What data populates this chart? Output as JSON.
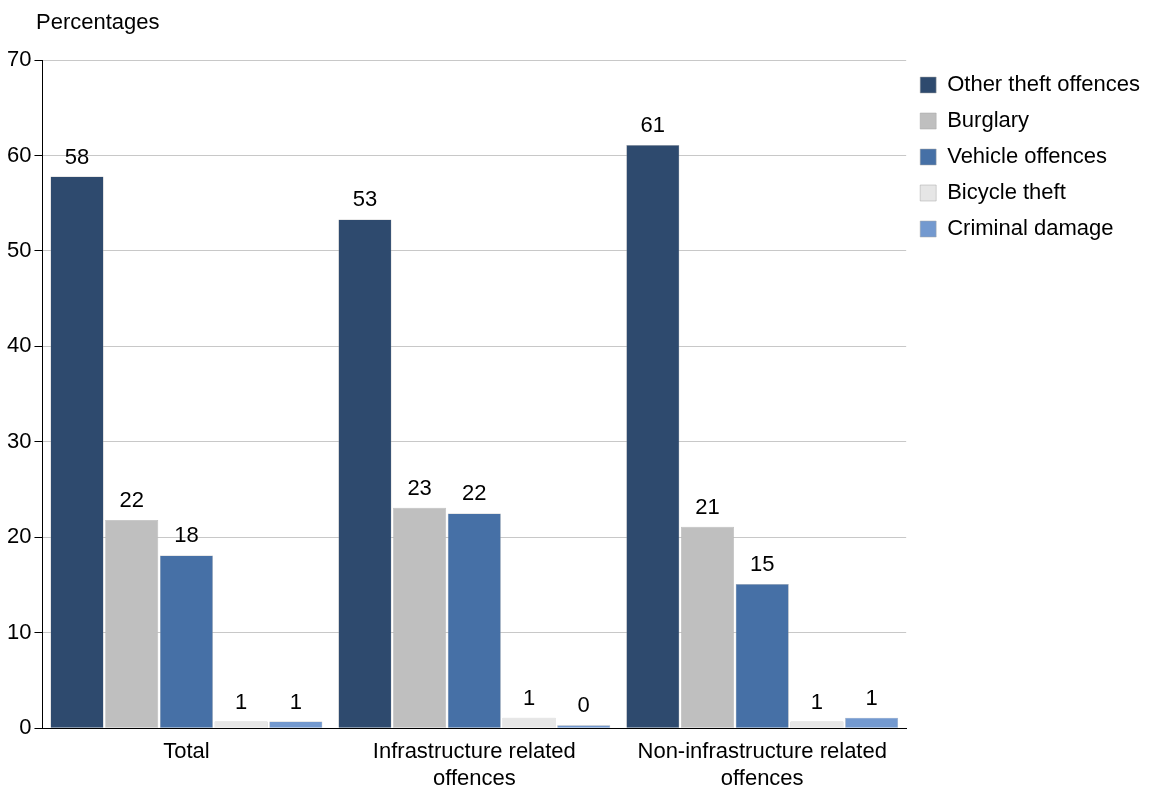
{
  "chart_data": {
    "type": "bar",
    "ylabel": "Percentages",
    "categories": [
      "Total",
      "Infrastructure related offences",
      "Non-infrastructure related offences"
    ],
    "series": [
      {
        "name": "Other theft offences",
        "color": "#2e4a6e",
        "values": [
          57.8,
          53.3,
          61.1
        ],
        "value_labels": [
          "58",
          "53",
          "61"
        ]
      },
      {
        "name": "Burglary",
        "color": "#bfbfbf",
        "values": [
          21.8,
          23.1,
          21.1
        ],
        "value_labels": [
          "22",
          "23",
          "21"
        ]
      },
      {
        "name": "Vehicle offences",
        "color": "#4670a6",
        "values": [
          18.1,
          22.5,
          15.1
        ],
        "value_labels": [
          "18",
          "22",
          "15"
        ]
      },
      {
        "name": "Bicycle theft",
        "color": "#e6e6e6",
        "values": [
          0.7,
          1.1,
          0.7
        ],
        "value_labels": [
          "1",
          "1",
          "1"
        ]
      },
      {
        "name": "Criminal damage",
        "color": "#7399cf",
        "values": [
          0.7,
          0.3,
          1.1
        ],
        "value_labels": [
          "1",
          "0",
          "1"
        ]
      }
    ],
    "ylim": [
      0,
      70
    ],
    "yticks": [
      0,
      10,
      20,
      30,
      40,
      50,
      60,
      70
    ],
    "grid": "y",
    "legend": "top right"
  }
}
